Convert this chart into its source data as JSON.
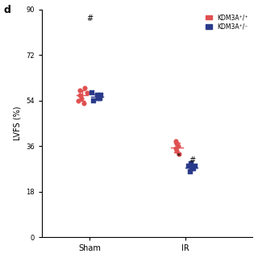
{
  "title_label": "d",
  "ylabel": "LVFS (%)",
  "xlabel_sham": "Sham",
  "xlabel_ir": "IR",
  "yticks": [
    0,
    18,
    36,
    54,
    72,
    90
  ],
  "ylim": [
    0,
    90
  ],
  "legend_wt": "KDM3A⁺/⁺",
  "legend_ko": "KDM3A⁺/⁻",
  "color_wt": "#e05050",
  "color_ko": "#2a3a8a",
  "sham_wt": [
    55,
    57,
    59,
    53,
    56,
    58,
    54
  ],
  "sham_ko": [
    55,
    56,
    55,
    57,
    56,
    55,
    54
  ],
  "ir_wt": [
    35,
    38,
    34,
    33,
    36,
    37
  ],
  "ir_ko": [
    27,
    28,
    26,
    29,
    27,
    28
  ],
  "background_color": "#ffffff"
}
